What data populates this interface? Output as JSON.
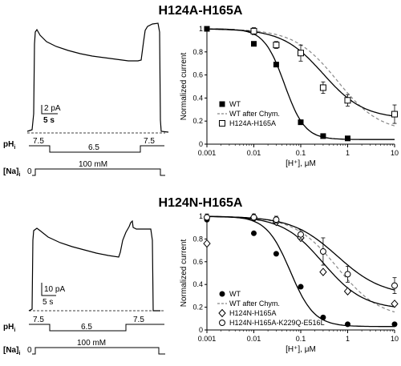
{
  "panels": [
    {
      "title": "H124A-H165A",
      "trace": {
        "current_scale": "2 pA",
        "time_scale": "5 s",
        "ph_label": "pH",
        "ph_sub": "i",
        "ph_values": [
          "7.5",
          "6.5",
          "7.5"
        ],
        "na_label": "[Na]",
        "na_sub": "i",
        "na_zero": "0",
        "na_value": "100 mM"
      }
    },
    {
      "title": "H124N-H165A",
      "trace": {
        "current_scale": "10 pA",
        "time_scale": "5 s",
        "ph_label": "pH",
        "ph_sub": "i",
        "ph_values": [
          "7.5",
          "6.5",
          "7.5"
        ],
        "na_label": "[Na]",
        "na_sub": "i",
        "na_zero": "0",
        "na_value": "100 mM"
      }
    }
  ],
  "chart_data": [
    {
      "type": "scatter",
      "xlabel": "[H⁺], μM",
      "ylabel": "Normalized current",
      "xscale": "log",
      "xlim": [
        0.001,
        10
      ],
      "ylim": [
        0,
        1
      ],
      "xticks": [
        "0.001",
        "0.01",
        "0.1",
        "1",
        "10"
      ],
      "yticks": [
        "0",
        "0.2",
        "0.4",
        "0.6",
        "0.8",
        "1"
      ],
      "legend_position": "bottom-left",
      "series": [
        {
          "name": "WT",
          "marker": "filled-square",
          "x": [
            0.001,
            0.01,
            0.03,
            0.1,
            0.3,
            1
          ],
          "y": [
            1.0,
            0.87,
            0.69,
            0.19,
            0.07,
            0.05
          ],
          "fit": {
            "ic50": 0.045,
            "hill": 2.0,
            "bottom": 0.04
          }
        },
        {
          "name": "WT after Chym.",
          "marker": "none",
          "line": "dashed",
          "fit": {
            "ic50": 0.6,
            "hill": 0.95,
            "bottom": 0.1
          }
        },
        {
          "name": "H124A-H165A",
          "marker": "open-square",
          "x": [
            0.01,
            0.03,
            0.1,
            0.3,
            1,
            10
          ],
          "y": [
            0.98,
            0.86,
            0.79,
            0.49,
            0.38,
            0.26
          ],
          "yerr": [
            0.03,
            0.03,
            0.07,
            0.05,
            0.05,
            0.08
          ],
          "fit": {
            "ic50": 0.3,
            "hill": 1.0,
            "bottom": 0.22
          }
        }
      ]
    },
    {
      "type": "scatter",
      "xlabel": "[H⁺], μM",
      "ylabel": "Normalized current",
      "xscale": "log",
      "xlim": [
        0.001,
        10
      ],
      "ylim": [
        0,
        1
      ],
      "xticks": [
        "0.001",
        "0.01",
        "0.1",
        "1",
        "10"
      ],
      "yticks": [
        "0",
        "0.2",
        "0.4",
        "0.6",
        "0.8",
        "1"
      ],
      "legend_position": "bottom-left",
      "series": [
        {
          "name": "WT",
          "marker": "filled-circle",
          "x": [
            0.001,
            0.01,
            0.03,
            0.1,
            0.3,
            1,
            10
          ],
          "y": [
            0.97,
            0.85,
            0.67,
            0.38,
            0.11,
            0.05,
            0.05
          ],
          "fit": {
            "ic50": 0.06,
            "hill": 1.7,
            "bottom": 0.03
          }
        },
        {
          "name": "WT after Chym.",
          "marker": "none",
          "line": "dashed",
          "fit": {
            "ic50": 0.6,
            "hill": 0.95,
            "bottom": 0.1
          }
        },
        {
          "name": "H124N-H165A",
          "marker": "open-diamond",
          "x": [
            0.001,
            0.01,
            0.03,
            0.1,
            0.3,
            1,
            10
          ],
          "y": [
            0.76,
            0.99,
            0.95,
            0.81,
            0.51,
            0.34,
            0.23
          ],
          "fit": {
            "ic50": 0.3,
            "hill": 1.0,
            "bottom": 0.18
          }
        },
        {
          "name": "H124N-H165A-K229Q-E516L",
          "marker": "open-circle",
          "x": [
            0.001,
            0.01,
            0.03,
            0.1,
            0.3,
            1,
            10
          ],
          "y": [
            0.99,
            0.99,
            0.97,
            0.84,
            0.69,
            0.49,
            0.39
          ],
          "yerr": [
            0.03,
            0.03,
            0.03,
            0.04,
            0.12,
            0.07,
            0.07
          ],
          "fit": {
            "ic50": 0.6,
            "hill": 0.9,
            "bottom": 0.3
          }
        }
      ]
    }
  ]
}
